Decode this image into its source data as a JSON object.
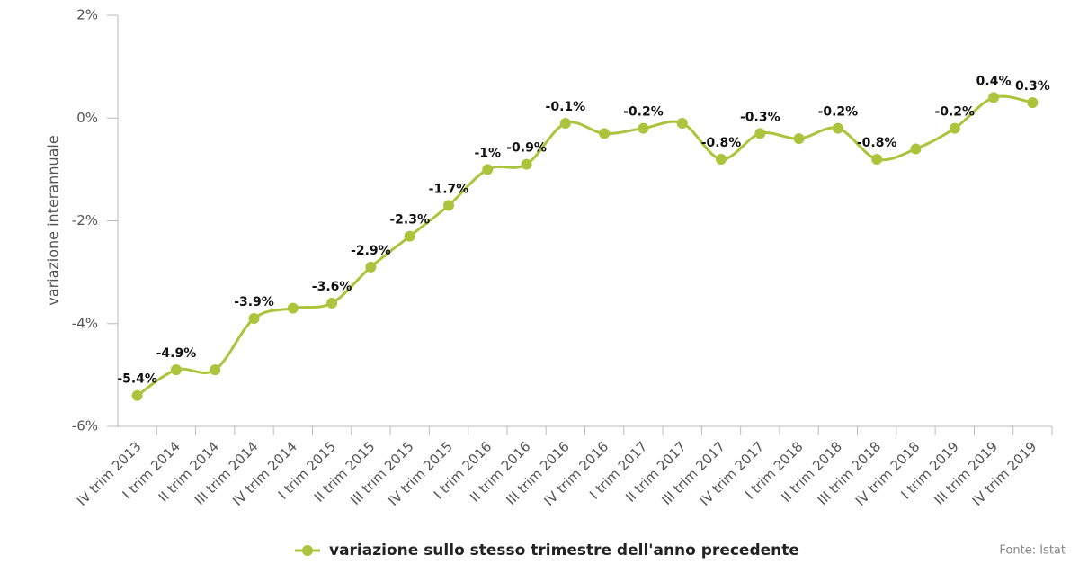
{
  "chart_data": {
    "type": "line",
    "y_label": "variazione interannuale",
    "categories": [
      "IV trim 2013",
      "I trim 2014",
      "II trim 2014",
      "III trim 2014",
      "IV trim 2014",
      "I trim 2015",
      "II trim 2015",
      "III trim 2015",
      "IV trim 2015",
      "I trim 2016",
      "II trim 2016",
      "III trim 2016",
      "IV trim 2016",
      "I trim 2017",
      "II trim 2017",
      "III trim 2017",
      "IV trim 2017",
      "I trim 2018",
      "II trim 2018",
      "III trim 2018",
      "IV trim 2018",
      "I trim 2019",
      "III trim 2019",
      "IV trim 2019"
    ],
    "series": [
      {
        "name": "variazione sullo stesso trimestre dell'anno precedente",
        "color": "#abc43c",
        "values": [
          -5.4,
          -4.9,
          -4.9,
          -3.9,
          -3.7,
          -3.6,
          -2.9,
          -2.3,
          -1.7,
          -1,
          -0.9,
          -0.1,
          -0.3,
          -0.2,
          -0.1,
          -0.8,
          -0.3,
          -0.4,
          -0.2,
          -0.8,
          -0.6,
          -0.2,
          0.4,
          0.3
        ],
        "value_labels": [
          "-5.4%",
          "-4.9%",
          null,
          "-3.9%",
          null,
          "-3.6%",
          "-2.9%",
          "-2.3%",
          "-1.7%",
          "-1%",
          "-0.9%",
          "-0.1%",
          null,
          "-0.2%",
          null,
          "-0.8%",
          "-0.3%",
          null,
          "-0.2%",
          "-0.8%",
          null,
          "-0.2%",
          "0.4%",
          "0.3%"
        ]
      }
    ],
    "ylim": [
      -6,
      2
    ],
    "yticks": [
      {
        "value": -6,
        "label": "-6%"
      },
      {
        "value": -4,
        "label": "-4%"
      },
      {
        "value": -2,
        "label": "-2%"
      },
      {
        "value": 0,
        "label": "0%"
      },
      {
        "value": 2,
        "label": "2%"
      }
    ],
    "grid": false,
    "legend": "bottom",
    "source": "Fonte: Istat"
  }
}
